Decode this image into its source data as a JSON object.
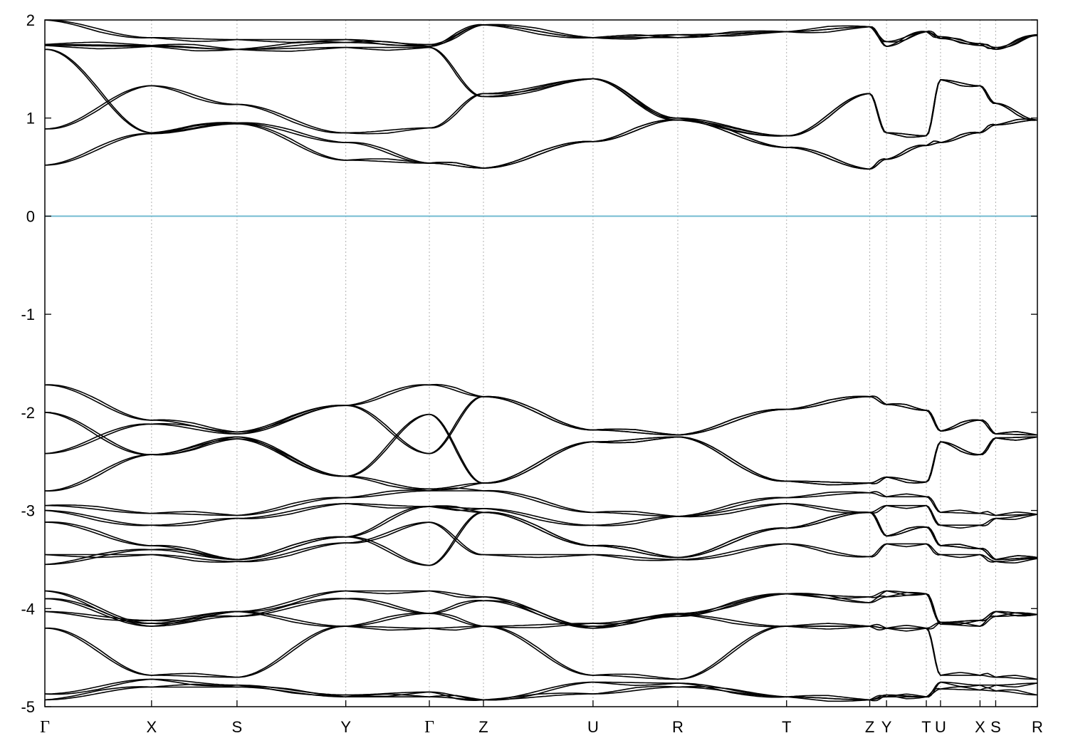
{
  "chart_data": {
    "type": "line",
    "title": "",
    "xlabel": "",
    "ylabel": "",
    "ylim": [
      -5,
      2
    ],
    "yticks": [
      -5,
      -4,
      -3,
      -2,
      -1,
      0,
      1,
      2
    ],
    "ytick_labels": [
      "-5",
      "-4",
      "-3",
      "-2",
      "-1",
      "0",
      "1",
      "2"
    ],
    "grid": "vertical dotted lines at high-symmetry points",
    "fermi_level": 0,
    "fermi_color": "#6bb8cf",
    "band_color": "#000000",
    "kpoints": [
      {
        "label": "Γ",
        "pos": 0.0
      },
      {
        "label": "X",
        "pos": 0.1075
      },
      {
        "label": "S",
        "pos": 0.1936
      },
      {
        "label": "Y",
        "pos": 0.3032
      },
      {
        "label": "Γ",
        "pos": 0.3874
      },
      {
        "label": "Z",
        "pos": 0.4419
      },
      {
        "label": "U",
        "pos": 0.5523
      },
      {
        "label": "R",
        "pos": 0.6377
      },
      {
        "label": "T",
        "pos": 0.7473
      },
      {
        "label": "Z",
        "pos": 0.8311
      },
      {
        "label": "Y",
        "pos": 0.848
      },
      {
        "label": "T",
        "pos": 0.8881
      },
      {
        "label": "U",
        "pos": 0.9024
      },
      {
        "label": "X",
        "pos": 0.9422
      },
      {
        "label": "S",
        "pos": 0.958
      },
      {
        "label": "R",
        "pos": 1.0
      }
    ],
    "series": [
      {
        "values": [
          0.52,
          0.84,
          0.94,
          0.57,
          0.54,
          0.49,
          0.76,
          0.98,
          0.7,
          0.48,
          0.58,
          0.72,
          0.75,
          0.85,
          0.93,
          0.98
        ]
      },
      {
        "values": [
          0.89,
          1.33,
          1.14,
          0.85,
          0.9,
          1.25,
          1.4,
          1.0,
          0.82,
          1.25,
          0.85,
          0.82,
          1.39,
          1.33,
          1.15,
          0.98
        ]
      },
      {
        "values": [
          1.7,
          0.85,
          0.95,
          0.75,
          0.54,
          0.49,
          0.76,
          0.98,
          0.7,
          0.48,
          0.58,
          0.72,
          0.75,
          0.85,
          0.93,
          0.98
        ]
      },
      {
        "values": [
          1.74,
          1.73,
          1.7,
          1.72,
          1.72,
          1.22,
          1.4,
          0.98,
          0.82,
          1.25,
          0.85,
          0.82,
          1.39,
          1.33,
          1.15,
          0.98
        ]
      },
      {
        "values": [
          1.75,
          1.74,
          1.7,
          1.77,
          1.73,
          1.95,
          1.82,
          1.82,
          1.88,
          1.93,
          1.73,
          1.88,
          1.81,
          1.74,
          1.7,
          1.84
        ]
      },
      {
        "values": [
          2.0,
          1.82,
          1.8,
          1.8,
          1.75,
          1.95,
          1.82,
          1.85,
          1.88,
          1.93,
          1.78,
          1.88,
          1.83,
          1.76,
          1.72,
          1.85
        ]
      },
      {
        "values": [
          -1.72,
          -2.08,
          -2.2,
          -1.93,
          -1.72,
          -1.84,
          -2.18,
          -2.23,
          -1.97,
          -1.84,
          -1.92,
          -1.98,
          -2.19,
          -2.08,
          -2.22,
          -2.23
        ]
      },
      {
        "values": [
          -2.0,
          -2.43,
          -2.25,
          -2.65,
          -2.02,
          -2.72,
          -2.3,
          -2.25,
          -2.7,
          -2.72,
          -2.66,
          -2.71,
          -2.3,
          -2.43,
          -2.26,
          -2.25
        ]
      },
      {
        "values": [
          -2.42,
          -2.12,
          -2.22,
          -1.93,
          -2.42,
          -1.84,
          -2.18,
          -2.23,
          -1.97,
          -1.84,
          -1.92,
          -1.98,
          -2.19,
          -2.08,
          -2.22,
          -2.23
        ]
      },
      {
        "values": [
          -2.8,
          -2.43,
          -2.27,
          -2.65,
          -2.78,
          -2.72,
          -2.3,
          -2.25,
          -2.7,
          -2.72,
          -2.66,
          -2.71,
          -2.3,
          -2.43,
          -2.26,
          -2.25
        ]
      },
      {
        "values": [
          -2.95,
          -3.03,
          -3.05,
          -2.87,
          -2.8,
          -2.8,
          -3.02,
          -3.06,
          -2.87,
          -2.82,
          -2.86,
          -2.86,
          -3.02,
          -3.03,
          -3.05,
          -3.04
        ]
      },
      {
        "values": [
          -3.0,
          -3.15,
          -3.08,
          -2.93,
          -2.96,
          -2.98,
          -3.15,
          -3.06,
          -2.93,
          -3.02,
          -2.95,
          -2.95,
          -3.15,
          -3.15,
          -3.08,
          -3.04
        ]
      },
      {
        "values": [
          -3.12,
          -3.36,
          -3.5,
          -3.27,
          -2.96,
          -3.02,
          -3.36,
          -3.48,
          -3.18,
          -3.02,
          -3.26,
          -3.17,
          -3.36,
          -3.39,
          -3.5,
          -3.48
        ]
      },
      {
        "values": [
          -3.45,
          -3.45,
          -3.52,
          -3.33,
          -3.12,
          -3.45,
          -3.45,
          -3.5,
          -3.34,
          -3.47,
          -3.34,
          -3.34,
          -3.45,
          -3.45,
          -3.52,
          -3.49
        ]
      },
      {
        "values": [
          -3.55,
          -3.4,
          -3.5,
          -3.27,
          -3.56,
          -3.02,
          -3.36,
          -3.48,
          -3.18,
          -3.02,
          -3.26,
          -3.17,
          -3.36,
          -3.39,
          -3.5,
          -3.48
        ]
      },
      {
        "values": [
          -3.82,
          -4.15,
          -4.03,
          -3.82,
          -3.82,
          -3.88,
          -4.18,
          -4.05,
          -3.85,
          -3.88,
          -3.82,
          -3.85,
          -4.14,
          -4.12,
          -4.03,
          -4.06
        ]
      },
      {
        "values": [
          -3.9,
          -4.18,
          -4.08,
          -3.9,
          -4.05,
          -3.92,
          -4.2,
          -4.08,
          -3.85,
          -3.94,
          -3.88,
          -3.85,
          -4.16,
          -4.18,
          -4.08,
          -4.06
        ]
      },
      {
        "values": [
          -4.03,
          -4.12,
          -4.03,
          -4.18,
          -4.2,
          -4.18,
          -4.15,
          -4.06,
          -4.18,
          -4.18,
          -4.2,
          -4.2,
          -4.14,
          -4.12,
          -4.03,
          -4.06
        ]
      },
      {
        "values": [
          -4.2,
          -4.68,
          -4.7,
          -4.18,
          -4.05,
          -4.18,
          -4.68,
          -4.72,
          -4.18,
          -4.18,
          -4.2,
          -4.2,
          -4.68,
          -4.68,
          -4.7,
          -4.72
        ]
      },
      {
        "values": [
          -4.87,
          -4.72,
          -4.78,
          -4.88,
          -4.85,
          -4.93,
          -4.75,
          -4.76,
          -4.9,
          -4.93,
          -4.88,
          -4.9,
          -4.75,
          -4.78,
          -4.78,
          -4.76
        ]
      },
      {
        "values": [
          -4.93,
          -4.8,
          -4.8,
          -4.9,
          -4.9,
          -4.93,
          -4.87,
          -4.8,
          -4.9,
          -4.93,
          -4.9,
          -4.9,
          -4.82,
          -4.83,
          -4.84,
          -4.88
        ]
      }
    ]
  }
}
